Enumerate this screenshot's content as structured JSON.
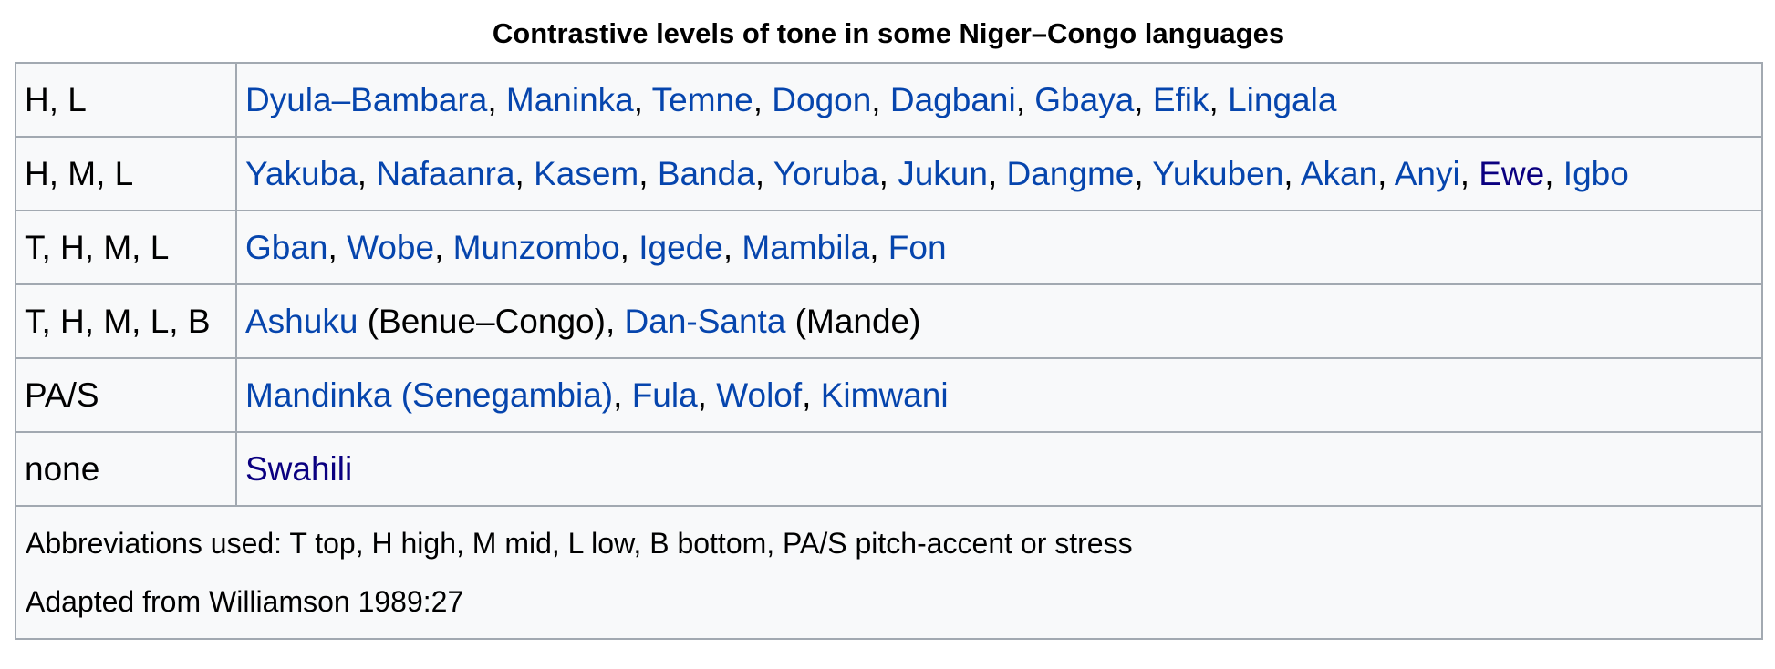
{
  "caption": "Contrastive levels of tone in some Niger–Congo languages",
  "colors": {
    "link": "#0645ad",
    "visited_link": "#0b0080",
    "border": "#a2a9b1",
    "cell_background": "#f8f9fa"
  },
  "rows": [
    {
      "levels": "H, L",
      "languages": [
        {
          "name": "Dyula–Bambara",
          "link": true,
          "visited": false
        },
        {
          "name": "Maninka",
          "link": true,
          "visited": false
        },
        {
          "name": "Temne",
          "link": true,
          "visited": false
        },
        {
          "name": "Dogon",
          "link": true,
          "visited": false
        },
        {
          "name": "Dagbani",
          "link": true,
          "visited": false
        },
        {
          "name": "Gbaya",
          "link": true,
          "visited": false
        },
        {
          "name": "Efik",
          "link": true,
          "visited": false
        },
        {
          "name": "Lingala",
          "link": true,
          "visited": false
        }
      ]
    },
    {
      "levels": "H, M, L",
      "languages": [
        {
          "name": "Yakuba",
          "link": true,
          "visited": false
        },
        {
          "name": "Nafaanra",
          "link": true,
          "visited": false
        },
        {
          "name": "Kasem",
          "link": true,
          "visited": false
        },
        {
          "name": "Banda",
          "link": true,
          "visited": false
        },
        {
          "name": "Yoruba",
          "link": true,
          "visited": false
        },
        {
          "name": "Jukun",
          "link": true,
          "visited": false
        },
        {
          "name": "Dangme",
          "link": true,
          "visited": false
        },
        {
          "name": "Yukuben",
          "link": true,
          "visited": false
        },
        {
          "name": "Akan",
          "link": true,
          "visited": false
        },
        {
          "name": "Anyi",
          "link": true,
          "visited": false
        },
        {
          "name": "Ewe",
          "link": true,
          "visited": true
        },
        {
          "name": "Igbo",
          "link": true,
          "visited": false
        }
      ]
    },
    {
      "levels": "T, H, M, L",
      "languages": [
        {
          "name": "Gban",
          "link": true,
          "visited": false
        },
        {
          "name": "Wobe",
          "link": true,
          "visited": false
        },
        {
          "name": "Munzombo",
          "link": true,
          "visited": false
        },
        {
          "name": "Igede",
          "link": true,
          "visited": false
        },
        {
          "name": "Mambila",
          "link": true,
          "visited": false
        },
        {
          "name": "Fon",
          "link": true,
          "visited": false
        }
      ]
    },
    {
      "levels": "T, H, M, L, B",
      "languages": [
        {
          "name": "Ashuku",
          "link": true,
          "visited": false,
          "suffix": " (Benue–Congo)"
        },
        {
          "name": "Dan-Santa",
          "link": true,
          "visited": false,
          "suffix": " (Mande)"
        }
      ]
    },
    {
      "levels": "PA/S",
      "languages": [
        {
          "name": "Mandinka (Senegambia)",
          "link": true,
          "visited": false
        },
        {
          "name": "Fula",
          "link": true,
          "visited": false
        },
        {
          "name": "Wolof",
          "link": true,
          "visited": false
        },
        {
          "name": "Kimwani",
          "link": true,
          "visited": false
        }
      ]
    },
    {
      "levels": "none",
      "languages": [
        {
          "name": "Swahili",
          "link": true,
          "visited": true
        }
      ]
    }
  ],
  "notes": [
    "Abbreviations used: T top, H high, M mid, L low, B bottom, PA/S pitch-accent or stress",
    "Adapted from Williamson 1989:27"
  ]
}
